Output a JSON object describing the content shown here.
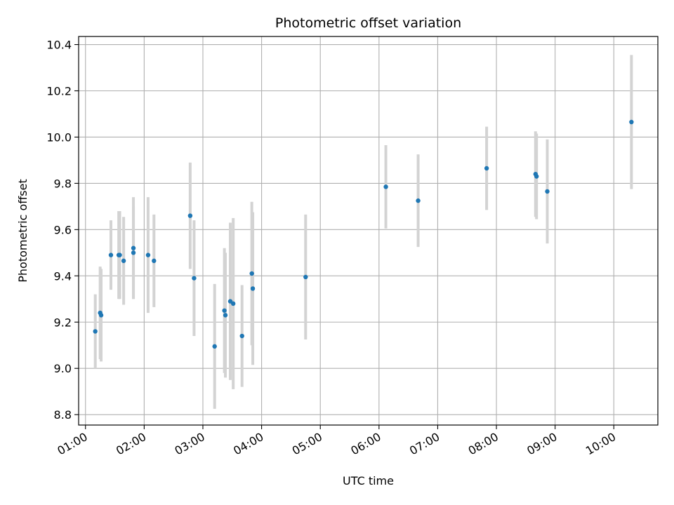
{
  "chart_data": {
    "type": "scatter",
    "title": "Photometric offset variation",
    "xlabel": "UTC time",
    "ylabel": "Photometric offset",
    "xlim": [
      "00:53",
      "10:45"
    ],
    "ylim": [
      8.755,
      10.435
    ],
    "grid": true,
    "x_ticks": [
      "01:00",
      "02:00",
      "03:00",
      "04:00",
      "05:00",
      "06:00",
      "07:00",
      "08:00",
      "09:00",
      "10:00"
    ],
    "y_ticks": [
      "8.8",
      "9.0",
      "9.2",
      "9.4",
      "9.6",
      "9.8",
      "10.0",
      "10.2",
      "10.4"
    ],
    "point_color": "#1f77b4",
    "errorbar_color": "#d3d3d3",
    "points": [
      {
        "x": "01:10",
        "y": 9.16,
        "err": 0.16
      },
      {
        "x": "01:15",
        "y": 9.24,
        "err": 0.2
      },
      {
        "x": "01:16",
        "y": 9.23,
        "err": 0.2
      },
      {
        "x": "01:26",
        "y": 9.49,
        "err": 0.15
      },
      {
        "x": "01:34",
        "y": 9.49,
        "err": 0.19
      },
      {
        "x": "01:35",
        "y": 9.49,
        "err": 0.19
      },
      {
        "x": "01:39",
        "y": 9.465,
        "err": 0.19
      },
      {
        "x": "01:49",
        "y": 9.52,
        "err": 0.22
      },
      {
        "x": "01:49",
        "y": 9.5,
        "err": 0.2
      },
      {
        "x": "02:04",
        "y": 9.49,
        "err": 0.25
      },
      {
        "x": "02:10",
        "y": 9.465,
        "err": 0.2
      },
      {
        "x": "02:47",
        "y": 9.66,
        "err": 0.23
      },
      {
        "x": "02:51",
        "y": 9.39,
        "err": 0.25
      },
      {
        "x": "03:12",
        "y": 9.095,
        "err": 0.27
      },
      {
        "x": "03:22",
        "y": 9.25,
        "err": 0.27
      },
      {
        "x": "03:23",
        "y": 9.23,
        "err": 0.27
      },
      {
        "x": "03:28",
        "y": 9.29,
        "err": 0.34
      },
      {
        "x": "03:31",
        "y": 9.28,
        "err": 0.37
      },
      {
        "x": "03:40",
        "y": 9.14,
        "err": 0.22
      },
      {
        "x": "03:50",
        "y": 9.41,
        "err": 0.31
      },
      {
        "x": "03:51",
        "y": 9.345,
        "err": 0.33
      },
      {
        "x": "04:45",
        "y": 9.395,
        "err": 0.27
      },
      {
        "x": "06:07",
        "y": 9.785,
        "err": 0.18
      },
      {
        "x": "06:40",
        "y": 9.725,
        "err": 0.2
      },
      {
        "x": "07:50",
        "y": 9.865,
        "err": 0.18
      },
      {
        "x": "08:40",
        "y": 9.84,
        "err": 0.185
      },
      {
        "x": "08:41",
        "y": 9.83,
        "err": 0.185
      },
      {
        "x": "08:52",
        "y": 9.765,
        "err": 0.225
      },
      {
        "x": "10:18",
        "y": 10.065,
        "err": 0.29
      }
    ]
  }
}
